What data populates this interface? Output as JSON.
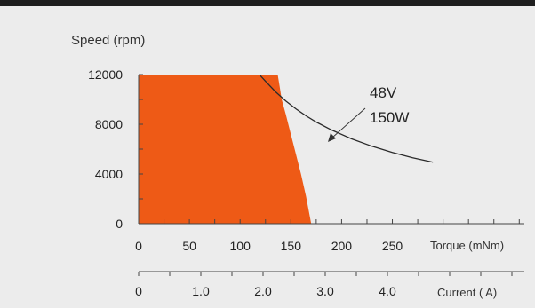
{
  "chart_data": {
    "type": "area",
    "ylabel": "Speed (rpm)",
    "xlabel": "Torque (mNm)",
    "x2label": "Current ( A)",
    "ylim": [
      0,
      12000
    ],
    "xlim": [
      0,
      380
    ],
    "x2lim": [
      0,
      6.2
    ],
    "yticks": [
      "0",
      "4000",
      "8000",
      "12000"
    ],
    "yticks_values": [
      0,
      4000,
      8000,
      12000
    ],
    "y_minor_step": 2000,
    "xticks": [
      "0",
      "50",
      "100",
      "150",
      "200",
      "250"
    ],
    "xticks_values": [
      0,
      50,
      100,
      150,
      200,
      250
    ],
    "x2ticks": [
      "0",
      "1.0",
      "2.0",
      "3.0",
      "4.0"
    ],
    "x2ticks_values": [
      0,
      1,
      2,
      3,
      4
    ],
    "x_minor_step": 25,
    "x2_minor_step": 0.5,
    "annotations": {
      "voltage": "48V",
      "power": "150W"
    },
    "colors": {
      "operating_region": "#ee5a16",
      "curve": "#2a2a2a"
    },
    "operating_region": {
      "x": [
        0,
        137,
        139,
        141,
        145,
        150,
        155,
        160,
        165,
        170,
        0
      ],
      "y": [
        12000,
        12000,
        11000,
        10000,
        8800,
        7200,
        5600,
        4000,
        2200,
        0,
        0
      ]
    },
    "power_curve": {
      "x": [
        119,
        125,
        135,
        145,
        155,
        165,
        175,
        190,
        210,
        230,
        250,
        270,
        290
      ],
      "y": [
        12000,
        11460,
        10610,
        9880,
        9240,
        8680,
        8180,
        7540,
        6820,
        6230,
        5730,
        5300,
        4940
      ]
    }
  }
}
